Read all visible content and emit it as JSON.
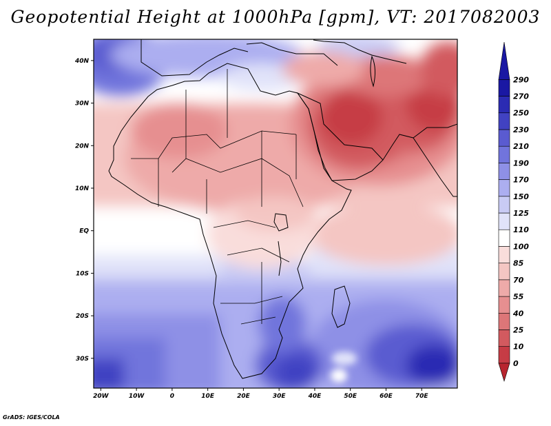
{
  "title": "Geopotential Height at 1000hPa [gpm], VT: 2017082003",
  "credit": "GrADS: IGES/COLA",
  "map": {
    "lat_labels": [
      "40N",
      "30N",
      "20N",
      "10N",
      "EQ",
      "10S",
      "20S",
      "30S"
    ],
    "lon_labels": [
      "20W",
      "10W",
      "0",
      "10E",
      "20E",
      "30E",
      "40E",
      "50E",
      "60E",
      "70E"
    ],
    "lat_range": [
      -37,
      45
    ],
    "lon_range": [
      -22,
      80
    ]
  },
  "legend": {
    "levels": [
      "0",
      "10",
      "25",
      "40",
      "55",
      "70",
      "85",
      "100",
      "110",
      "125",
      "150",
      "170",
      "190",
      "210",
      "230",
      "250",
      "270",
      "290"
    ],
    "colors": [
      "#b8252f",
      "#c63c45",
      "#d25a5f",
      "#dd7678",
      "#e68f90",
      "#eeaaa9",
      "#f4c6c3",
      "#f9dddb",
      "#ffffff",
      "#e1e3f9",
      "#c9cbf4",
      "#acaef0",
      "#8e90e6",
      "#7174dc",
      "#5a5bd0",
      "#4142c2",
      "#2b2bb3",
      "#1a18a3"
    ]
  },
  "colors": {
    "hot": "#b8252f",
    "cold": "#1a18a3",
    "neutral": "#ffffff"
  }
}
